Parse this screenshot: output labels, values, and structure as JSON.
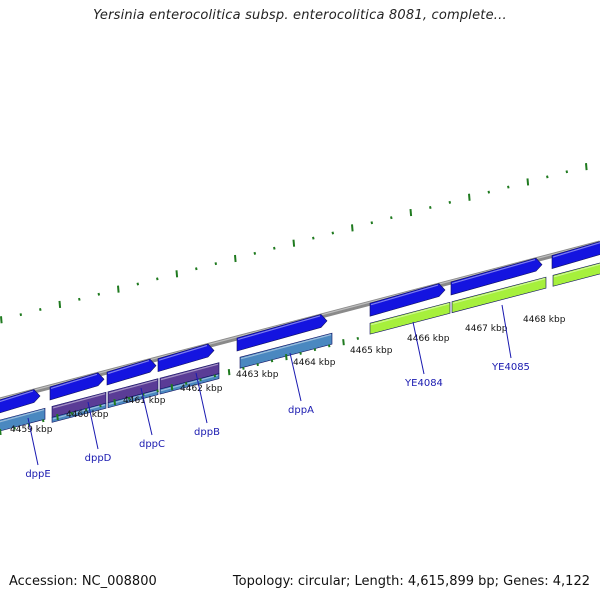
{
  "title": "Yersinia enterocolitica subsp. enterocolitica 8081, complete...",
  "footer": {
    "accession": "Accession: NC_008800",
    "stats": "Topology: circular; Length: 4,615,899 bp; Genes: 4,122"
  },
  "colors": {
    "backbone": "#8a8a8a",
    "ticks": "#1f7a1f",
    "forward_cds": "#1414e0",
    "gene_steel": "#4a88c0",
    "gene_purple": "#5a3c96",
    "gene_lime": "#a6f03c",
    "label": "#1a1ab0"
  },
  "kbp_ticks": [
    "4459 kbp",
    "4460 kbp",
    "4461 kbp",
    "4462 kbp",
    "4463 kbp",
    "4464 kbp",
    "4465 kbp",
    "4466 kbp",
    "4467 kbp",
    "4468 kbp"
  ],
  "genes": [
    {
      "name": "dppE",
      "color": "steel"
    },
    {
      "name": "dppD",
      "color": "purple"
    },
    {
      "name": "dppC",
      "color": "purple"
    },
    {
      "name": "dppB",
      "color": "purple"
    },
    {
      "name": "dppA",
      "color": "steel"
    },
    {
      "name": "YE4084",
      "color": "lime"
    },
    {
      "name": "YE4085",
      "color": "lime"
    }
  ]
}
